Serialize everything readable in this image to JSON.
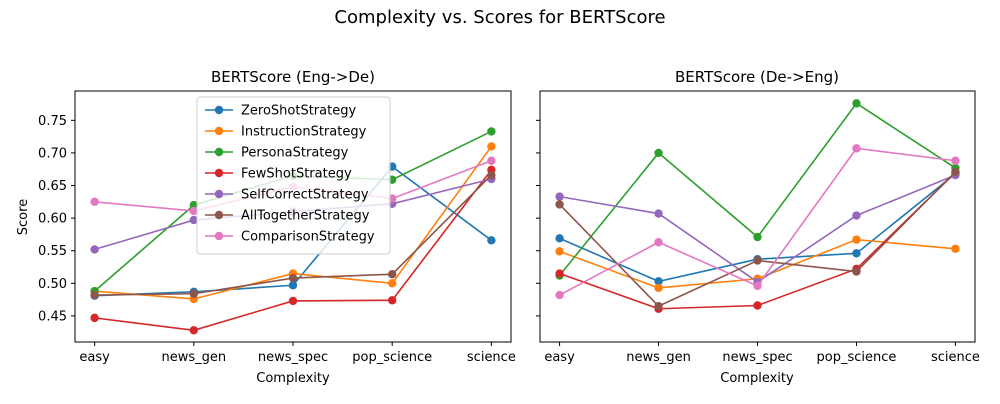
{
  "figure_title": "Complexity vs. Scores for BERTScore",
  "series_colors": {
    "ZeroShotStrategy": "#1f77b4",
    "InstructionStrategy": "#ff7f0e",
    "PersonaStrategy": "#2ca02c",
    "FewShotStrategy": "#d62728",
    "SelfCorrectStrategy": "#9467bd",
    "AllTogetherStrategy": "#8c564b",
    "ComparisonStrategy": "#e377c2"
  },
  "chart_data": [
    {
      "type": "line",
      "title": "BERTScore (Eng->De)",
      "xlabel": "Complexity",
      "ylabel": "Score",
      "categories": [
        "easy",
        "news_gen",
        "news_spec",
        "pop_science",
        "science"
      ],
      "ylim": [
        0.41,
        0.795
      ],
      "yticks": [
        "0.45",
        "0.50",
        "0.55",
        "0.60",
        "0.65",
        "0.70",
        "0.75"
      ],
      "legend": "upper-center",
      "grid": false,
      "series": [
        {
          "name": "ZeroShotStrategy",
          "values": [
            0.481,
            0.487,
            0.497,
            0.679,
            0.566
          ]
        },
        {
          "name": "InstructionStrategy",
          "values": [
            0.488,
            0.476,
            0.515,
            0.5,
            0.71
          ]
        },
        {
          "name": "PersonaStrategy",
          "values": [
            0.488,
            0.62,
            0.665,
            0.659,
            0.733
          ]
        },
        {
          "name": "FewShotStrategy",
          "values": [
            0.447,
            0.428,
            0.473,
            0.474,
            0.674
          ]
        },
        {
          "name": "SelfCorrectStrategy",
          "values": [
            0.552,
            0.597,
            0.61,
            0.622,
            0.66
          ]
        },
        {
          "name": "AllTogetherStrategy",
          "values": [
            0.482,
            0.484,
            0.508,
            0.514,
            0.666
          ]
        },
        {
          "name": "ComparisonStrategy",
          "values": [
            0.625,
            0.611,
            0.648,
            0.63,
            0.688
          ]
        }
      ]
    },
    {
      "type": "line",
      "title": "BERTScore (De->Eng)",
      "xlabel": "Complexity",
      "ylabel": "",
      "categories": [
        "easy",
        "news_gen",
        "news_spec",
        "pop_science",
        "science"
      ],
      "ylim": [
        0.41,
        0.795
      ],
      "yticks": [],
      "grid": false,
      "series": [
        {
          "name": "ZeroShotStrategy",
          "values": [
            0.569,
            0.503,
            0.537,
            0.546,
            0.668
          ]
        },
        {
          "name": "InstructionStrategy",
          "values": [
            0.549,
            0.493,
            0.507,
            0.567,
            0.553
          ]
        },
        {
          "name": "PersonaStrategy",
          "values": [
            0.512,
            0.7,
            0.571,
            0.776,
            0.677
          ]
        },
        {
          "name": "FewShotStrategy",
          "values": [
            0.515,
            0.461,
            0.466,
            0.522,
            0.67
          ]
        },
        {
          "name": "SelfCorrectStrategy",
          "values": [
            0.633,
            0.607,
            0.502,
            0.604,
            0.666
          ]
        },
        {
          "name": "AllTogetherStrategy",
          "values": [
            0.621,
            0.465,
            0.535,
            0.518,
            0.671
          ]
        },
        {
          "name": "ComparisonStrategy",
          "values": [
            0.482,
            0.563,
            0.496,
            0.707,
            0.688
          ]
        }
      ]
    }
  ]
}
